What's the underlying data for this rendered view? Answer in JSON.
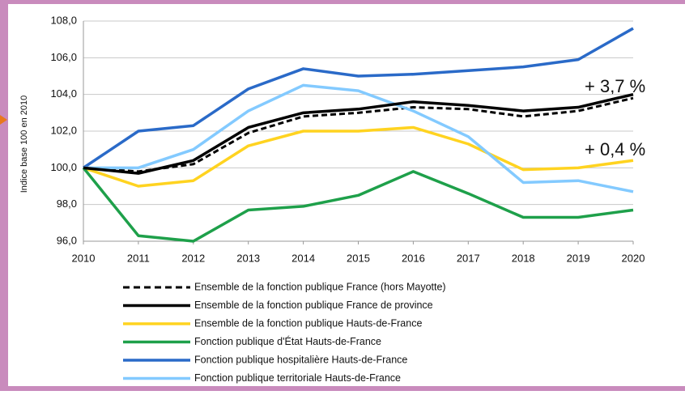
{
  "chart_data": {
    "type": "line",
    "y_label": "Indice base 100 en 2010",
    "x": [
      2010,
      2011,
      2012,
      2013,
      2014,
      2015,
      2016,
      2017,
      2018,
      2019,
      2020
    ],
    "xlim": [
      2010,
      2020
    ],
    "xticks": [
      2010,
      2011,
      2012,
      2013,
      2014,
      2015,
      2016,
      2017,
      2018,
      2019,
      2020
    ],
    "ylim": [
      96,
      108
    ],
    "yticks": [
      {
        "value": 96,
        "label": "96,0"
      },
      {
        "value": 98,
        "label": "98,0"
      },
      {
        "value": 100,
        "label": "100,0"
      },
      {
        "value": 102,
        "label": "102,0"
      },
      {
        "value": 104,
        "label": "104,0"
      },
      {
        "value": 106,
        "label": "106,0"
      },
      {
        "value": 108,
        "label": "108,0"
      }
    ],
    "grid": true,
    "series": [
      {
        "name": "Ensemble de la fonction publique France (hors Mayotte)",
        "color": "#000000",
        "dashed": true,
        "values": [
          100,
          99.8,
          100.2,
          101.9,
          102.8,
          103.0,
          103.3,
          103.2,
          102.8,
          103.1,
          103.8
        ]
      },
      {
        "name": "Ensemble de la fonction publique France de province",
        "color": "#000000",
        "values": [
          100,
          99.7,
          100.4,
          102.2,
          103.0,
          103.2,
          103.6,
          103.4,
          103.1,
          103.3,
          104.0
        ]
      },
      {
        "name": "Ensemble de la fonction publique Hauts-de-France",
        "color": "#ffd320",
        "values": [
          100,
          99.0,
          99.3,
          101.2,
          102.0,
          102.0,
          102.2,
          101.3,
          99.9,
          100.0,
          100.4
        ]
      },
      {
        "name": "Fonction publique d'État Hauts-de-France",
        "color": "#1ea04a",
        "values": [
          100,
          96.3,
          96.0,
          97.7,
          97.9,
          98.5,
          99.8,
          98.6,
          97.3,
          97.3,
          97.7
        ]
      },
      {
        "name": "Fonction publique hospitalière Hauts-de-France",
        "color": "#2a6ac8",
        "values": [
          100,
          102.0,
          102.3,
          104.3,
          105.4,
          105.0,
          105.1,
          105.3,
          105.5,
          105.9,
          107.6
        ]
      },
      {
        "name": "Fonction publique territoriale Hauts-de-France",
        "color": "#83caff",
        "values": [
          100,
          100.0,
          101.0,
          103.1,
          104.5,
          104.2,
          103.1,
          101.7,
          99.2,
          99.3,
          98.7
        ]
      }
    ],
    "annotations": [
      "+ 3,7 %",
      "+ 0,4 %"
    ]
  }
}
